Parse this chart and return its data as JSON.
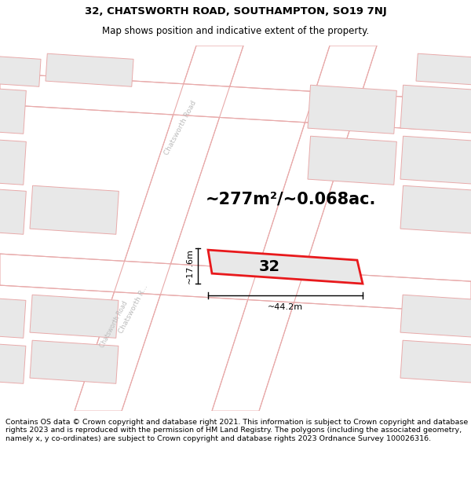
{
  "title_line1": "32, CHATSWORTH ROAD, SOUTHAMPTON, SO19 7NJ",
  "title_line2": "Map shows position and indicative extent of the property.",
  "area_text": "~277m²/~0.068ac.",
  "property_number": "32",
  "width_label": "~44.2m",
  "height_label": "~17.6m",
  "footer_text": "Contains OS data © Crown copyright and database right 2021. This information is subject to Crown copyright and database rights 2023 and is reproduced with the permission of HM Land Registry. The polygons (including the associated geometry, namely x, y co-ordinates) are subject to Crown copyright and database rights 2023 Ordnance Survey 100026316.",
  "bg_color": "#ffffff",
  "map_bg": "#ffffff",
  "prop_fill": "#e8e8e8",
  "highlight_color": "#e8191c",
  "road_line_color": "#e8aaaa",
  "road_label_color": "#bbbbbb",
  "title_fontsize": 9.5,
  "subtitle_fontsize": 8.5,
  "area_fontsize": 15,
  "footer_fontsize": 6.8,
  "dim_fontsize": 8,
  "prop32_label_fontsize": 14
}
